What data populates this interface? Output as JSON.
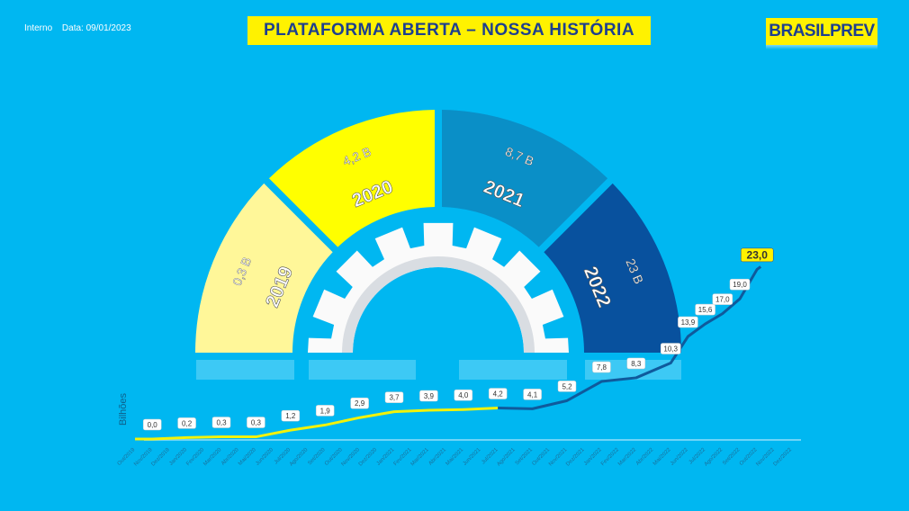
{
  "header": {
    "classification": "Interno",
    "date_label": "Data: 09/01/2023",
    "title": "PLATAFORMA ABERTA – NOSSA HISTÓRIA",
    "logo_text": "BRASILPREV"
  },
  "colors": {
    "background": "#00b7f1",
    "y2019": "#fff799",
    "y2020": "#ffff00",
    "y2021": "#0a8fc7",
    "y2022": "#08519e",
    "line_early": "#f2f20a",
    "line_late": "#0f5a9c",
    "accent": "#fff200"
  },
  "segments": [
    {
      "year": "2019",
      "value": "0,3 B"
    },
    {
      "year": "2020",
      "value": "4,2 B"
    },
    {
      "year": "2021",
      "value": "8,7 B"
    },
    {
      "year": "2022",
      "value": "23 B"
    }
  ],
  "gear_icon": "gear-icon",
  "chart_data": {
    "type": "line",
    "ylabel": "Bilhões",
    "categories": [
      "Out/2019",
      "Nov/2019",
      "Dez/2019",
      "Jan/2020",
      "Fev/2020",
      "Mar/2020",
      "Abr/2020",
      "Mai/2020",
      "Jun/2020",
      "Jul/2020",
      "Ago/2020",
      "Set/2020",
      "Out/2020",
      "Nov/2020",
      "Dez/2020",
      "Jan/2021",
      "Fev/2021",
      "Mar/2021",
      "Abr/2021",
      "Mai/2021",
      "Jun/2021",
      "Jul/2021",
      "Ago/2021",
      "Set/2021",
      "Out/2021",
      "Nov/2021",
      "Dez/2021",
      "Jan/2022",
      "Fev/2022",
      "Mar/2022",
      "Abr/2022",
      "Mai/2022",
      "Jun/2022",
      "Jul/2022",
      "Ago/2022",
      "Set/2022",
      "Out/2022",
      "Nov/2022",
      "Dez/2022"
    ],
    "points": [
      {
        "x": "Nov/2019",
        "y": 0.0,
        "label": "0,0"
      },
      {
        "x": "Jan/2020",
        "y": 0.2,
        "label": "0,2"
      },
      {
        "x": "Mar/2020",
        "y": 0.3,
        "label": "0,3"
      },
      {
        "x": "Mai/2020",
        "y": 0.3,
        "label": "0,3"
      },
      {
        "x": "Jul/2020",
        "y": 1.2,
        "label": "1,2"
      },
      {
        "x": "Set/2020",
        "y": 1.9,
        "label": "1,9"
      },
      {
        "x": "Nov/2020",
        "y": 2.9,
        "label": "2,9"
      },
      {
        "x": "Jan/2021",
        "y": 3.7,
        "label": "3,7"
      },
      {
        "x": "Mar/2021",
        "y": 3.9,
        "label": "3,9"
      },
      {
        "x": "Mai/2021",
        "y": 4.0,
        "label": "4,0"
      },
      {
        "x": "Jul/2021",
        "y": 4.2,
        "label": "4,2"
      },
      {
        "x": "Set/2021",
        "y": 4.1,
        "label": "4,1"
      },
      {
        "x": "Nov/2021",
        "y": 5.2,
        "label": "5,2"
      },
      {
        "x": "Jan/2022",
        "y": 7.8,
        "label": "7,8"
      },
      {
        "x": "Mar/2022",
        "y": 8.3,
        "label": "8,3"
      },
      {
        "x": "Mai/2022",
        "y": 10.3,
        "label": "10,3"
      },
      {
        "x": "Jun/2022",
        "y": 13.9,
        "label": "13,9"
      },
      {
        "x": "Jul/2022",
        "y": 15.6,
        "label": "15,6"
      },
      {
        "x": "Ago/2022",
        "y": 17.0,
        "label": "17,0"
      },
      {
        "x": "Set/2022",
        "y": 19.0,
        "label": "19,0"
      },
      {
        "x": "Out/2022",
        "y": 23.0,
        "label": "23,0"
      }
    ],
    "color_change_at": "Jul/2021",
    "ylim": [
      0,
      23
    ],
    "grid": false
  }
}
